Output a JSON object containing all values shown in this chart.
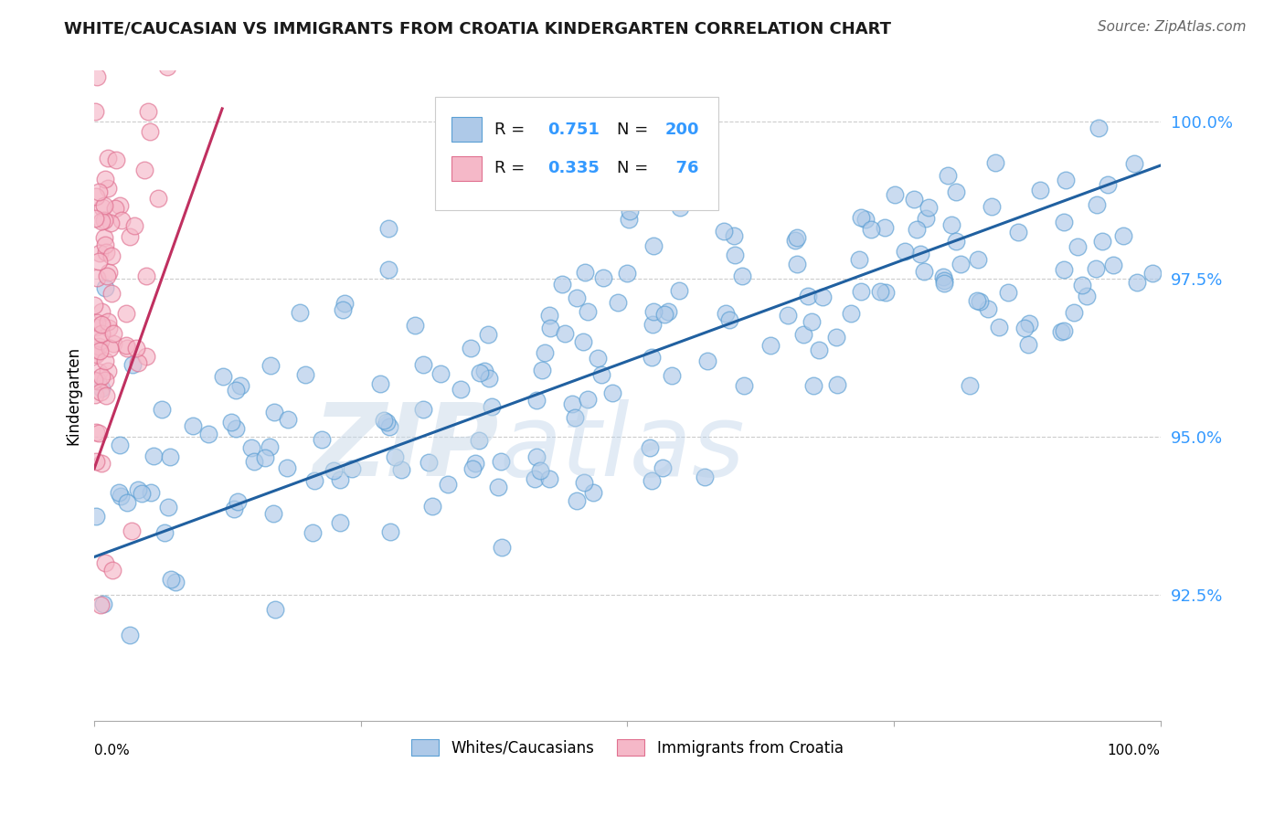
{
  "title": "WHITE/CAUCASIAN VS IMMIGRANTS FROM CROATIA KINDERGARTEN CORRELATION CHART",
  "source": "Source: ZipAtlas.com",
  "ylabel": "Kindergarten",
  "blue_R": 0.751,
  "blue_N": 200,
  "pink_R": 0.335,
  "pink_N": 76,
  "blue_color": "#aec9e8",
  "blue_edge": "#5a9fd4",
  "pink_color": "#f5b8c8",
  "pink_edge": "#e07090",
  "blue_line_color": "#2060a0",
  "pink_line_color": "#c03060",
  "legend_color": "#3399ff",
  "ytick_labels": [
    "92.5%",
    "95.0%",
    "97.5%",
    "100.0%"
  ],
  "ytick_values": [
    0.925,
    0.95,
    0.975,
    1.0
  ],
  "x_range": [
    0.0,
    1.0
  ],
  "y_range": [
    0.905,
    1.008
  ],
  "blue_line_x": [
    0.0,
    1.0
  ],
  "blue_line_y": [
    0.931,
    0.993
  ],
  "pink_line_x": [
    0.0,
    0.12
  ],
  "pink_line_y": [
    0.945,
    1.002
  ]
}
